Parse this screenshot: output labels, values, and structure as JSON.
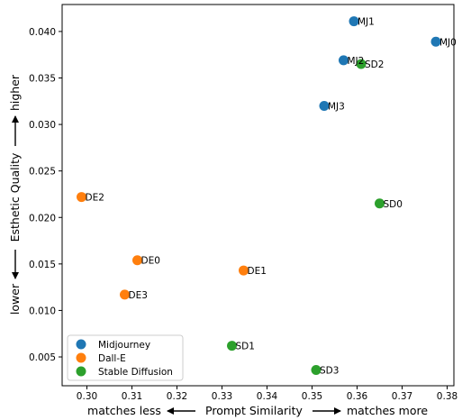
{
  "chart_data": {
    "type": "scatter",
    "xlabel": {
      "left": "matches less",
      "center": "Prompt Similarity",
      "right": "matches more"
    },
    "ylabel": {
      "bottom": "lower",
      "center": "Esthetic Quality",
      "top": "higher"
    },
    "xlim": [
      0.2945,
      0.3815
    ],
    "ylim": [
      0.0019,
      0.0429
    ],
    "x_ticks": [
      0.3,
      0.31,
      0.32,
      0.33,
      0.34,
      0.35,
      0.36,
      0.37,
      0.38
    ],
    "x_tick_labels": [
      "0.30",
      "0.31",
      "0.32",
      "0.33",
      "0.34",
      "0.35",
      "0.36",
      "0.37",
      "0.38"
    ],
    "y_ticks": [
      0.005,
      0.01,
      0.015,
      0.02,
      0.025,
      0.03,
      0.035,
      0.04
    ],
    "y_tick_labels": [
      "0.005",
      "0.010",
      "0.015",
      "0.020",
      "0.025",
      "0.030",
      "0.035",
      "0.040"
    ],
    "grid": false,
    "legend_position": "lower-left",
    "series": [
      {
        "name": "Midjourney",
        "color": "#1f77b4",
        "points": [
          {
            "label": "MJ0",
            "x": 0.3775,
            "y": 0.0389
          },
          {
            "label": "MJ1",
            "x": 0.3593,
            "y": 0.0411
          },
          {
            "label": "MJ2",
            "x": 0.357,
            "y": 0.0369
          },
          {
            "label": "MJ3",
            "x": 0.3527,
            "y": 0.032
          }
        ]
      },
      {
        "name": "Dall-E",
        "color": "#ff7f0e",
        "points": [
          {
            "label": "DE0",
            "x": 0.3112,
            "y": 0.0154
          },
          {
            "label": "DE1",
            "x": 0.3348,
            "y": 0.0143
          },
          {
            "label": "DE2",
            "x": 0.2988,
            "y": 0.0222
          },
          {
            "label": "DE3",
            "x": 0.3084,
            "y": 0.0117
          }
        ]
      },
      {
        "name": "Stable Diffusion",
        "color": "#2ca02c",
        "points": [
          {
            "label": "SD0",
            "x": 0.365,
            "y": 0.0215
          },
          {
            "label": "SD1",
            "x": 0.3322,
            "y": 0.0062
          },
          {
            "label": "SD2",
            "x": 0.3609,
            "y": 0.0365
          },
          {
            "label": "SD3",
            "x": 0.3509,
            "y": 0.0036
          }
        ]
      }
    ]
  }
}
